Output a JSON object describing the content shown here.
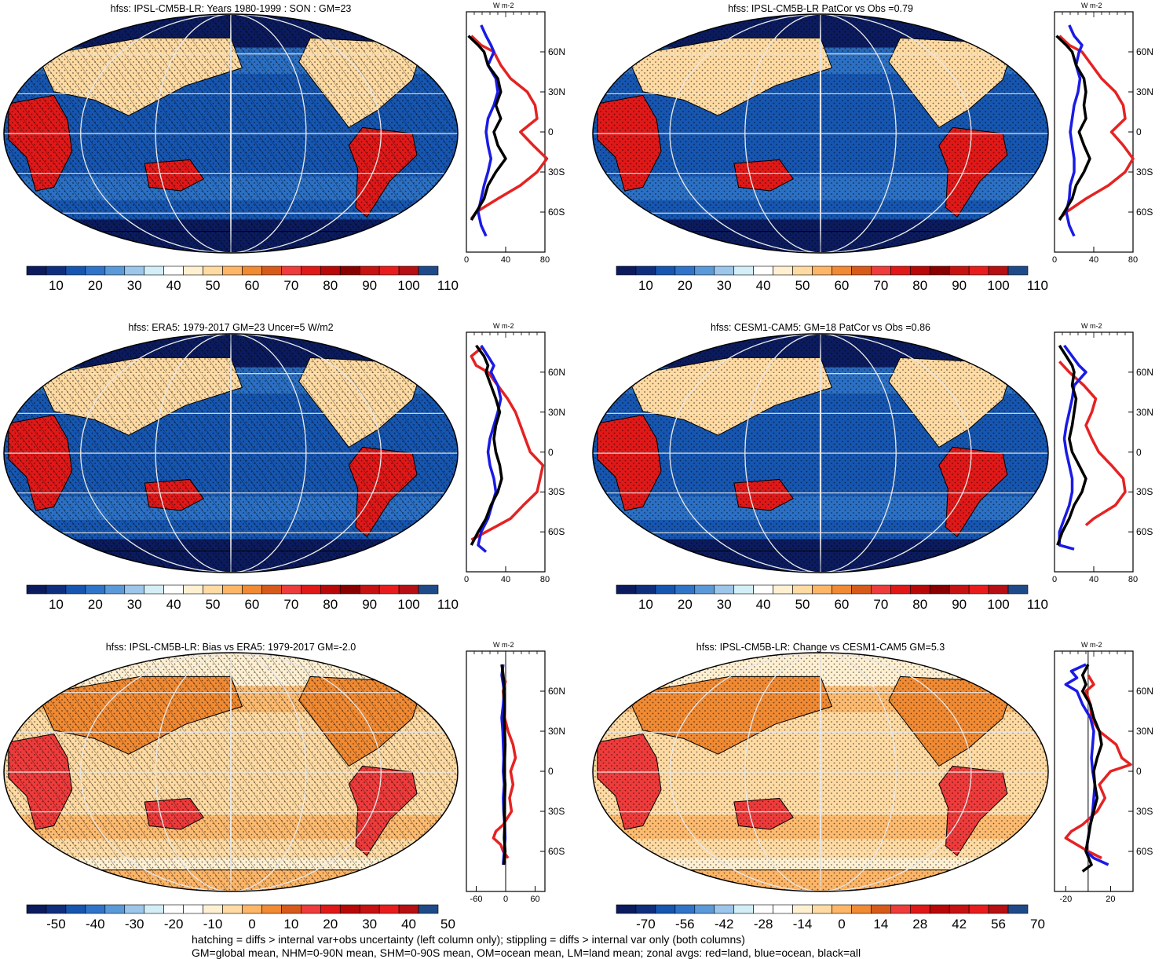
{
  "footer": {
    "line1": "hatching = diffs > internal var+obs uncertainty (left column only); stippling = diffs > internal var only (both columns)",
    "line2": "GM=global mean, NHM=0-90N mean, SHM=0-90S mean, OM=ocean mean, LM=land mean; zonal avgs: red=land, blue=ocean, black=all"
  },
  "colors": {
    "seq": [
      "#0b1b5e",
      "#0f2f7e",
      "#1656b0",
      "#2f74c8",
      "#5b9ad9",
      "#9cc6ea",
      "#d3eef7",
      "#ffffff",
      "#fff0d2",
      "#ffdba3",
      "#fdb567",
      "#f08a33",
      "#d85a1b",
      "#ee3b3b",
      "#e01818",
      "#b80808",
      "#8a0000",
      "#c71212",
      "#e81c1c",
      "#b60f14",
      "#1e4a8a"
    ],
    "div": [
      "#0b1b5e",
      "#0f2f7e",
      "#1656b0",
      "#2f74c8",
      "#5b9ad9",
      "#9cc6ea",
      "#d3eef7",
      "#ffffff",
      "#ffffff",
      "#fff0d2",
      "#ffdba3",
      "#fdb567",
      "#f08a33",
      "#d85a1b",
      "#ee3b3b",
      "#e01818",
      "#b80808",
      "#c71212",
      "#e81c1c",
      "#b60f14",
      "#1e4a8a"
    ],
    "land": "#e52222",
    "ocean": "#1a1ae6",
    "all": "#000000"
  },
  "chart_data": [
    {
      "type": "heatmap",
      "title": "hfss: IPSL-CM5B-LR: Years 1980-1999 : SON : GM=23",
      "colorbar_labels": [
        "10",
        "20",
        "30",
        "40",
        "50",
        "60",
        "70",
        "80",
        "90",
        "100",
        "110"
      ],
      "colorscale": "seq",
      "zonal": {
        "units": "W m-2",
        "xlim": [
          0,
          80
        ],
        "xticks": [
          "0",
          "40",
          "80"
        ],
        "lat_labels": [
          "60N",
          "30N",
          "0",
          "30S",
          "60S"
        ],
        "series": [
          {
            "name": "land",
            "lat": [
              72,
              65,
              60,
              50,
              40,
              30,
              20,
              10,
              0,
              -10,
              -20,
              -30,
              -40,
              -50,
              -60,
              -65
            ],
            "values": [
              5,
              15,
              28,
              35,
              45,
              62,
              70,
              72,
              55,
              68,
              82,
              72,
              55,
              32,
              10,
              5
            ]
          },
          {
            "name": "ocean",
            "lat": [
              80,
              72,
              65,
              60,
              50,
              40,
              30,
              20,
              10,
              0,
              -10,
              -20,
              -30,
              -40,
              -50,
              -60,
              -70,
              -78
            ],
            "values": [
              15,
              20,
              25,
              28,
              22,
              30,
              32,
              28,
              22,
              20,
              22,
              25,
              22,
              18,
              15,
              12,
              15,
              20
            ]
          },
          {
            "name": "all",
            "lat": [
              72,
              65,
              60,
              50,
              40,
              30,
              20,
              10,
              0,
              -10,
              -20,
              -30,
              -40,
              -50,
              -60,
              -66
            ],
            "values": [
              2,
              12,
              18,
              22,
              32,
              35,
              30,
              35,
              28,
              32,
              40,
              30,
              22,
              18,
              10,
              5
            ]
          }
        ]
      }
    },
    {
      "type": "heatmap",
      "title": "hfss: IPSL-CM5B-LR PatCor vs Obs =0.79",
      "colorbar_labels": [
        "10",
        "20",
        "30",
        "40",
        "50",
        "60",
        "70",
        "80",
        "90",
        "100",
        "110"
      ],
      "colorscale": "seq",
      "zonal": {
        "units": "W m-2",
        "xlim": [
          0,
          80
        ],
        "xticks": [
          "0",
          "40",
          "80"
        ],
        "lat_labels": [
          "60N",
          "30N",
          "0",
          "30S",
          "60S"
        ],
        "series": [
          {
            "name": "land",
            "lat": [
              72,
              65,
              60,
              50,
              40,
              30,
              20,
              10,
              0,
              -10,
              -20,
              -30,
              -40,
              -50,
              -60,
              -65
            ],
            "values": [
              5,
              15,
              28,
              38,
              48,
              62,
              70,
              72,
              58,
              70,
              80,
              72,
              55,
              32,
              12,
              5
            ]
          },
          {
            "name": "ocean",
            "lat": [
              80,
              72,
              65,
              60,
              50,
              40,
              30,
              20,
              10,
              0,
              -10,
              -20,
              -30,
              -40,
              -50,
              -60,
              -70,
              -78
            ],
            "values": [
              15,
              20,
              28,
              25,
              22,
              26,
              24,
              20,
              18,
              16,
              18,
              20,
              20,
              16,
              15,
              12,
              15,
              20
            ]
          },
          {
            "name": "all",
            "lat": [
              72,
              65,
              60,
              50,
              40,
              30,
              20,
              10,
              0,
              -10,
              -20,
              -30,
              -40,
              -50,
              -60,
              -66
            ],
            "values": [
              2,
              12,
              18,
              22,
              30,
              32,
              30,
              32,
              25,
              30,
              36,
              30,
              22,
              18,
              10,
              5
            ]
          }
        ]
      }
    },
    {
      "type": "heatmap",
      "title": "hfss: ERA5: 1979-2017 GM=23 Uncer=5 W/m2",
      "colorbar_labels": [
        "10",
        "20",
        "30",
        "40",
        "50",
        "60",
        "70",
        "80",
        "90",
        "100",
        "110"
      ],
      "colorscale": "seq",
      "zonal": {
        "units": "W m-2",
        "xlim": [
          0,
          80
        ],
        "xticks": [
          "0",
          "40",
          "80"
        ],
        "lat_labels": [
          "60N",
          "30N",
          "0",
          "30S",
          "60S"
        ],
        "series": [
          {
            "name": "land",
            "lat": [
              78,
              72,
              65,
              60,
              50,
              40,
              30,
              20,
              10,
              0,
              -10,
              -20,
              -30,
              -40,
              -50,
              -60,
              -66
            ],
            "values": [
              15,
              5,
              10,
              22,
              32,
              42,
              50,
              55,
              60,
              65,
              78,
              75,
              72,
              58,
              45,
              20,
              5
            ]
          },
          {
            "name": "ocean",
            "lat": [
              80,
              72,
              65,
              60,
              50,
              40,
              30,
              20,
              10,
              0,
              -10,
              -20,
              -30,
              -40,
              -50,
              -60,
              -70,
              -75
            ],
            "values": [
              15,
              22,
              28,
              25,
              32,
              35,
              32,
              28,
              24,
              22,
              24,
              28,
              30,
              26,
              22,
              15,
              12,
              20
            ]
          },
          {
            "name": "all",
            "lat": [
              80,
              72,
              65,
              60,
              50,
              40,
              30,
              20,
              10,
              0,
              -10,
              -20,
              -30,
              -40,
              -50,
              -60,
              -70
            ],
            "values": [
              10,
              18,
              22,
              20,
              25,
              30,
              34,
              30,
              28,
              30,
              34,
              36,
              32,
              25,
              20,
              12,
              5
            ]
          }
        ]
      }
    },
    {
      "type": "heatmap",
      "title": "hfss: CESM1-CAM5: GM=18 PatCor vs Obs =0.86",
      "colorbar_labels": [
        "10",
        "20",
        "30",
        "40",
        "50",
        "60",
        "70",
        "80",
        "90",
        "100",
        "110"
      ],
      "colorscale": "seq",
      "zonal": {
        "units": "W m-2",
        "xlim": [
          0,
          80
        ],
        "xticks": [
          "0",
          "40",
          "80"
        ],
        "lat_labels": [
          "60N",
          "30N",
          "0",
          "30S",
          "60S"
        ],
        "series": [
          {
            "name": "land",
            "lat": [
              68,
              60,
              50,
              40,
              30,
              20,
              10,
              0,
              -10,
              -20,
              -30,
              -40,
              -50,
              -55
            ],
            "values": [
              5,
              15,
              30,
              42,
              38,
              32,
              38,
              45,
              58,
              70,
              72,
              62,
              40,
              32
            ]
          },
          {
            "name": "ocean",
            "lat": [
              80,
              72,
              65,
              60,
              50,
              40,
              30,
              20,
              10,
              0,
              -10,
              -20,
              -30,
              -40,
              -50,
              -60,
              -70,
              -73
            ],
            "values": [
              10,
              18,
              25,
              32,
              20,
              18,
              15,
              12,
              10,
              12,
              15,
              18,
              18,
              15,
              10,
              5,
              5,
              20
            ]
          },
          {
            "name": "all",
            "lat": [
              80,
              72,
              65,
              60,
              50,
              40,
              30,
              20,
              10,
              0,
              -10,
              -20,
              -30,
              -40,
              -50,
              -60,
              -70
            ],
            "values": [
              5,
              12,
              18,
              20,
              18,
              22,
              20,
              18,
              15,
              18,
              25,
              32,
              28,
              20,
              15,
              8,
              3
            ]
          }
        ]
      }
    },
    {
      "type": "heatmap",
      "title": "hfss: IPSL-CM5B-LR: Bias vs ERA5: 1979-2017  GM=-2.0",
      "colorbar_labels": [
        "-50",
        "-40",
        "-30",
        "-20",
        "-10",
        "0",
        "10",
        "20",
        "30",
        "40",
        "50"
      ],
      "colorscale": "div",
      "zonal": {
        "units": "W m-2",
        "xlim": [
          -80,
          80
        ],
        "xticks": [
          "-60",
          "0",
          "60"
        ],
        "lat_labels": [
          "60N",
          "30N",
          "0",
          "30S",
          "60S"
        ],
        "series": [
          {
            "name": "land",
            "lat": [
              68,
              60,
              50,
              40,
              30,
              20,
              10,
              0,
              -10,
              -20,
              -30,
              -40,
              -45,
              -50,
              -55,
              -60,
              -65
            ],
            "values": [
              0,
              -5,
              -3,
              -2,
              5,
              15,
              20,
              10,
              15,
              8,
              12,
              -5,
              -20,
              -25,
              -10,
              -5,
              5
            ]
          },
          {
            "name": "ocean",
            "lat": [
              80,
              72,
              65,
              60,
              50,
              40,
              30,
              20,
              10,
              0,
              -10,
              -20,
              -30,
              -40,
              -50,
              -60,
              -70
            ],
            "values": [
              -5,
              -8,
              -5,
              -3,
              -5,
              -8,
              -6,
              -5,
              -4,
              -5,
              -3,
              -5,
              -4,
              -2,
              -1,
              -3,
              -5
            ]
          },
          {
            "name": "all",
            "lat": [
              80,
              72,
              65,
              60,
              50,
              40,
              30,
              20,
              10,
              0,
              -10,
              -20,
              -30,
              -40,
              -50,
              -60,
              -70
            ],
            "values": [
              -8,
              -5,
              -3,
              -4,
              -2,
              -3,
              -2,
              -1,
              -2,
              -3,
              -1,
              -2,
              -3,
              -2,
              -3,
              -1,
              -4
            ]
          }
        ]
      }
    },
    {
      "type": "heatmap",
      "title": "hfss: IPSL-CM5B-LR: Change vs CESM1-CAM5 GM=5.3",
      "colorbar_labels": [
        "-70",
        "-56",
        "-42",
        "-28",
        "-14",
        "0",
        "14",
        "28",
        "42",
        "56",
        "70"
      ],
      "colorscale": "div",
      "zonal": {
        "units": "W m-2",
        "xlim": [
          -30,
          40
        ],
        "xticks": [
          "-20",
          "20"
        ],
        "lat_labels": [
          "60N",
          "30N",
          "0",
          "30S",
          "60S"
        ],
        "series": [
          {
            "name": "land",
            "lat": [
              72,
              65,
              60,
              50,
              40,
              30,
              20,
              10,
              5,
              0,
              -10,
              -20,
              -30,
              -40,
              -45,
              -50,
              -55,
              -60,
              -65
            ],
            "values": [
              0,
              5,
              -2,
              2,
              3,
              10,
              25,
              30,
              38,
              20,
              10,
              15,
              8,
              -5,
              -15,
              -20,
              -10,
              0,
              12
            ]
          },
          {
            "name": "ocean",
            "lat": [
              80,
              75,
              70,
              65,
              60,
              50,
              40,
              30,
              20,
              10,
              0,
              -10,
              -20,
              -30,
              -40,
              -50,
              -60,
              -65,
              -70
            ],
            "values": [
              -2,
              -15,
              -10,
              -20,
              -10,
              -5,
              2,
              5,
              4,
              3,
              4,
              6,
              5,
              4,
              2,
              0,
              -2,
              5,
              18
            ]
          },
          {
            "name": "all",
            "lat": [
              80,
              72,
              65,
              60,
              50,
              40,
              30,
              20,
              10,
              0,
              -10,
              -20,
              -30,
              -40,
              -50,
              -60,
              -70,
              -75
            ],
            "values": [
              0,
              -5,
              -2,
              -5,
              2,
              5,
              10,
              12,
              8,
              5,
              6,
              8,
              5,
              2,
              0,
              -2,
              3,
              -5
            ]
          }
        ]
      }
    }
  ]
}
